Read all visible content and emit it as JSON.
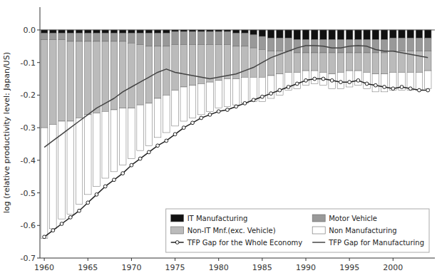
{
  "chart_data": {
    "type": "bar",
    "stacked": true,
    "grid": false,
    "legend": "lower right",
    "ylabel": "log (relative productivity level: Japan/US)",
    "x": [
      1960,
      1961,
      1962,
      1963,
      1964,
      1965,
      1966,
      1967,
      1968,
      1969,
      1970,
      1971,
      1972,
      1973,
      1974,
      1975,
      1976,
      1977,
      1978,
      1979,
      1980,
      1981,
      1982,
      1983,
      1984,
      1985,
      1986,
      1987,
      1988,
      1989,
      1990,
      1991,
      1992,
      1993,
      1994,
      1995,
      1996,
      1997,
      1998,
      1999,
      2000,
      2001,
      2002,
      2003,
      2004
    ],
    "xlim": [
      1959.5,
      2004.8
    ],
    "xticks": [
      1960,
      1965,
      1970,
      1975,
      1980,
      1985,
      1990,
      1995,
      2000
    ],
    "ylim": [
      -0.7,
      0.07
    ],
    "yticks": [
      {
        "value": 0.0,
        "label": "0.0"
      },
      -0.1,
      -0.2,
      -0.3,
      -0.4,
      -0.5,
      -0.6,
      -0.7
    ],
    "series": [
      {
        "name": "IT Manufacturing",
        "type": "bar",
        "color": "#111111",
        "values": [
          -0.01,
          -0.01,
          -0.01,
          -0.01,
          -0.01,
          -0.01,
          -0.01,
          -0.01,
          -0.01,
          -0.01,
          -0.01,
          -0.01,
          -0.01,
          -0.01,
          -0.01,
          -0.005,
          -0.005,
          -0.005,
          -0.005,
          -0.005,
          -0.005,
          -0.005,
          -0.01,
          -0.01,
          -0.015,
          -0.02,
          -0.025,
          -0.025,
          -0.025,
          -0.03,
          -0.03,
          -0.03,
          -0.03,
          -0.03,
          -0.03,
          -0.03,
          -0.03,
          -0.03,
          -0.03,
          -0.03,
          -0.025,
          -0.025,
          -0.025,
          -0.025,
          -0.025
        ]
      },
      {
        "name": "Motor Vehicle",
        "type": "bar",
        "color": "#999999",
        "values": [
          -0.02,
          -0.02,
          -0.02,
          -0.025,
          -0.025,
          -0.025,
          -0.025,
          -0.025,
          -0.025,
          -0.025,
          -0.03,
          -0.035,
          -0.04,
          -0.04,
          -0.04,
          -0.04,
          -0.04,
          -0.04,
          -0.04,
          -0.04,
          -0.04,
          -0.04,
          -0.04,
          -0.04,
          -0.04,
          -0.04,
          -0.04,
          -0.04,
          -0.04,
          -0.04,
          -0.04,
          -0.04,
          -0.04,
          -0.04,
          -0.04,
          -0.04,
          -0.04,
          -0.04,
          -0.04,
          -0.04,
          -0.04,
          -0.04,
          -0.04,
          -0.04,
          -0.04
        ]
      },
      {
        "name": "Non-IT Mnf.(exc. Vehicle)",
        "type": "bar",
        "color": "#bbbbbb",
        "values": [
          -0.27,
          -0.26,
          -0.25,
          -0.245,
          -0.235,
          -0.225,
          -0.22,
          -0.215,
          -0.21,
          -0.205,
          -0.2,
          -0.185,
          -0.175,
          -0.16,
          -0.15,
          -0.14,
          -0.13,
          -0.125,
          -0.12,
          -0.115,
          -0.11,
          -0.105,
          -0.1,
          -0.095,
          -0.09,
          -0.085,
          -0.075,
          -0.07,
          -0.065,
          -0.06,
          -0.055,
          -0.055,
          -0.06,
          -0.065,
          -0.06,
          -0.055,
          -0.055,
          -0.06,
          -0.065,
          -0.065,
          -0.065,
          -0.065,
          -0.065,
          -0.065,
          -0.06
        ]
      },
      {
        "name": "Non Manufacturing",
        "type": "bar",
        "color": "#ffffff",
        "values": [
          -0.34,
          -0.32,
          -0.3,
          -0.285,
          -0.265,
          -0.245,
          -0.225,
          -0.205,
          -0.19,
          -0.175,
          -0.155,
          -0.14,
          -0.13,
          -0.12,
          -0.115,
          -0.11,
          -0.105,
          -0.1,
          -0.095,
          -0.09,
          -0.085,
          -0.085,
          -0.08,
          -0.08,
          -0.075,
          -0.075,
          -0.07,
          -0.065,
          -0.055,
          -0.05,
          -0.045,
          -0.04,
          -0.04,
          -0.045,
          -0.05,
          -0.05,
          -0.045,
          -0.05,
          -0.055,
          -0.055,
          -0.055,
          -0.055,
          -0.055,
          -0.055,
          -0.055
        ]
      },
      {
        "name": "TFP Gap for the Whole Economy",
        "type": "line",
        "color": "#222222",
        "marker": "circle",
        "values": [
          -0.635,
          -0.615,
          -0.595,
          -0.575,
          -0.555,
          -0.53,
          -0.505,
          -0.48,
          -0.46,
          -0.44,
          -0.415,
          -0.395,
          -0.375,
          -0.355,
          -0.34,
          -0.32,
          -0.3,
          -0.285,
          -0.27,
          -0.26,
          -0.25,
          -0.245,
          -0.235,
          -0.225,
          -0.215,
          -0.205,
          -0.195,
          -0.185,
          -0.175,
          -0.165,
          -0.155,
          -0.15,
          -0.15,
          -0.155,
          -0.16,
          -0.16,
          -0.155,
          -0.165,
          -0.17,
          -0.175,
          -0.18,
          -0.175,
          -0.18,
          -0.185,
          -0.185
        ]
      },
      {
        "name": "TFP Gap for Manufacturing",
        "type": "line",
        "color": "#444444",
        "values": [
          -0.36,
          -0.34,
          -0.32,
          -0.3,
          -0.28,
          -0.26,
          -0.24,
          -0.225,
          -0.21,
          -0.19,
          -0.175,
          -0.16,
          -0.145,
          -0.13,
          -0.12,
          -0.13,
          -0.135,
          -0.14,
          -0.145,
          -0.15,
          -0.145,
          -0.14,
          -0.135,
          -0.125,
          -0.115,
          -0.1,
          -0.085,
          -0.075,
          -0.065,
          -0.055,
          -0.048,
          -0.048,
          -0.05,
          -0.055,
          -0.055,
          -0.05,
          -0.048,
          -0.05,
          -0.06,
          -0.065,
          -0.065,
          -0.07,
          -0.075,
          -0.08,
          -0.085
        ]
      }
    ]
  }
}
